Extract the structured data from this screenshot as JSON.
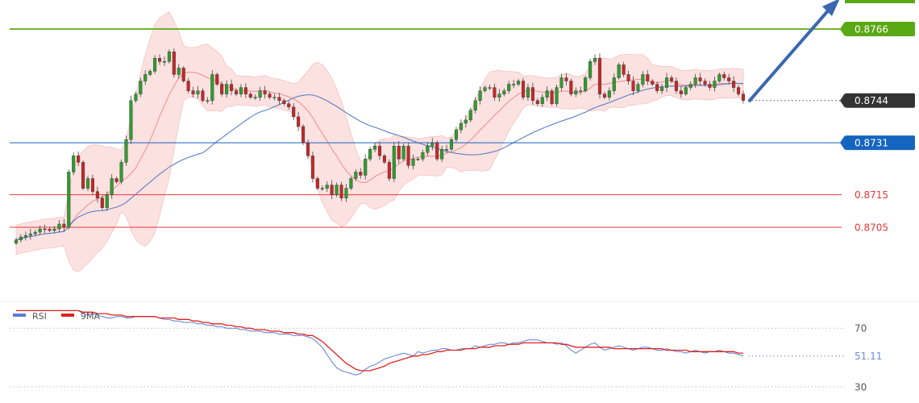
{
  "chart_data": [
    {
      "type": "candlestick",
      "panel": "price",
      "title": "",
      "xlabel": "",
      "ylabel": "",
      "ylim": [
        0.868,
        0.8772
      ],
      "y_ticks_shown": false,
      "grid": false,
      "levels": [
        {
          "name": "resistance",
          "value": 0.8766,
          "label": "0.8766",
          "color": "#5aa814",
          "style": "solid",
          "tag": true
        },
        {
          "name": "current-price",
          "value": 0.8744,
          "label": "0.8744",
          "color": "#333333",
          "style": "dotted",
          "tag": true
        },
        {
          "name": "pivot",
          "value": 0.8731,
          "label": "0.8731",
          "color": "#1565c0",
          "style": "solid",
          "tag": true
        },
        {
          "name": "support-1",
          "value": 0.8715,
          "label": "0.8715",
          "color": "#e53935",
          "style": "solid",
          "tag": false
        },
        {
          "name": "support-2",
          "value": 0.8705,
          "label": "0.8705",
          "color": "#e53935",
          "style": "solid",
          "tag": false
        }
      ],
      "close": [
        0.87011,
        0.8702,
        0.87025,
        0.8703,
        0.87035,
        0.87045,
        0.87044,
        0.8704,
        0.87045,
        0.8706,
        0.8705,
        0.8722,
        0.8727,
        0.8725,
        0.8717,
        0.872,
        0.8716,
        0.8714,
        0.8711,
        0.8715,
        0.872,
        0.8719,
        0.8725,
        0.8732,
        0.8744,
        0.8746,
        0.875,
        0.8752,
        0.8753,
        0.8757,
        0.8756,
        0.8756,
        0.8759,
        0.8752,
        0.8754,
        0.875,
        0.8747,
        0.8746,
        0.8747,
        0.8744,
        0.8744,
        0.8752,
        0.8749,
        0.8746,
        0.8749,
        0.8747,
        0.8746,
        0.8748,
        0.8746,
        0.8745,
        0.8745,
        0.8747,
        0.8746,
        0.8745,
        0.8745,
        0.8744,
        0.8743,
        0.8742,
        0.8739,
        0.8736,
        0.8731,
        0.8727,
        0.872,
        0.8717,
        0.8717,
        0.8718,
        0.8715,
        0.8718,
        0.8714,
        0.8717,
        0.872,
        0.8722,
        0.8721,
        0.8726,
        0.8729,
        0.873,
        0.8727,
        0.8725,
        0.872,
        0.873,
        0.8726,
        0.873,
        0.8724,
        0.8726,
        0.8726,
        0.8728,
        0.873,
        0.8731,
        0.8726,
        0.8729,
        0.8729,
        0.8732,
        0.8735,
        0.8737,
        0.8738,
        0.8741,
        0.8744,
        0.8747,
        0.8748,
        0.8748,
        0.8745,
        0.8746,
        0.8747,
        0.8749,
        0.8749,
        0.875,
        0.8745,
        0.8748,
        0.8744,
        0.8743,
        0.8745,
        0.8747,
        0.8743,
        0.8748,
        0.8751,
        0.875,
        0.8746,
        0.8747,
        0.8747,
        0.8751,
        0.8756,
        0.8757,
        0.8746,
        0.8745,
        0.8747,
        0.8751,
        0.8755,
        0.8752,
        0.875,
        0.8747,
        0.8749,
        0.8752,
        0.875,
        0.8749,
        0.8747,
        0.8748,
        0.8751,
        0.875,
        0.8747,
        0.8746,
        0.8748,
        0.8749,
        0.8751,
        0.875,
        0.8749,
        0.8748,
        0.875,
        0.8752,
        0.8751,
        0.875,
        0.8748,
        0.8746,
        0.8744
      ],
      "candle_colors": {
        "up": "#2e9e2e",
        "down": "#c62828"
      },
      "overlays": [
        {
          "name": "bollinger-band",
          "fill": "#f9c9c9",
          "opacity": 0.55
        },
        {
          "name": "ma-fast",
          "color": "#f28b8b"
        },
        {
          "name": "ma-slow",
          "color": "#5a7fc0"
        }
      ],
      "annotation": {
        "type": "arrow",
        "direction": "up",
        "color": "#3a68b0"
      }
    },
    {
      "type": "line",
      "panel": "rsi",
      "title": "",
      "legend": {
        "placement": "top-left",
        "entries": [
          {
            "name": "RSI",
            "color": "#5b7fd4"
          },
          {
            "name": "9MA",
            "color": "#e02020"
          }
        ]
      },
      "ylim": [
        20,
        85
      ],
      "guide_levels": [
        70,
        30
      ],
      "guide_labels": [
        "70",
        "30"
      ],
      "current_value_label": "51.11",
      "current_value_color": "#6f8fd6",
      "series": [
        {
          "name": "RSI",
          "color": "#5b7fd4",
          "values": [
            82,
            82,
            82,
            82,
            82,
            82,
            82,
            82,
            82,
            82,
            82,
            82,
            82,
            82,
            80,
            79,
            80,
            79,
            78,
            77,
            77,
            78,
            78,
            77,
            77,
            78,
            78,
            78,
            78,
            78,
            77,
            76,
            76,
            75,
            75,
            74,
            74,
            74,
            73,
            73,
            72,
            72,
            71,
            71,
            70,
            70,
            70,
            69,
            69,
            68,
            68,
            68,
            67,
            67,
            67,
            66,
            66,
            66,
            65,
            65,
            65,
            64,
            63,
            60,
            57,
            52,
            47,
            43,
            41,
            40,
            39,
            38,
            39,
            42,
            44,
            45,
            47,
            49,
            50,
            51,
            52,
            53,
            52,
            51,
            54,
            53,
            54,
            55,
            55,
            56,
            56,
            55,
            55,
            56,
            56,
            56,
            58,
            57,
            58,
            59,
            59,
            60,
            60,
            59,
            60,
            60,
            61,
            62,
            62,
            62,
            61,
            60,
            60,
            59,
            60,
            58,
            55,
            53,
            55,
            57,
            59,
            60,
            57,
            55,
            56,
            57,
            58,
            57,
            56,
            55,
            56,
            57,
            57,
            56,
            55,
            55,
            56,
            55,
            54,
            54,
            53,
            54,
            55,
            54,
            53,
            54,
            54,
            55,
            54,
            53,
            53,
            52,
            51
          ]
        },
        {
          "name": "9MA",
          "color": "#e02020",
          "values": [
            82,
            82,
            82,
            82,
            82,
            82,
            82,
            82,
            82,
            82,
            82,
            82,
            82,
            82,
            81,
            81,
            81,
            80,
            80,
            80,
            79,
            79,
            79,
            78,
            78,
            78,
            78,
            78,
            78,
            78,
            77,
            77,
            77,
            77,
            76,
            76,
            76,
            75,
            75,
            74,
            74,
            73,
            73,
            73,
            72,
            72,
            71,
            71,
            70,
            70,
            69,
            69,
            69,
            68,
            68,
            68,
            67,
            67,
            67,
            66,
            66,
            65,
            65,
            63,
            61,
            58,
            55,
            52,
            49,
            46,
            44,
            42,
            41,
            41,
            41,
            42,
            43,
            44,
            46,
            47,
            48,
            49,
            50,
            51,
            51,
            52,
            52,
            53,
            54,
            54,
            55,
            55,
            55,
            55,
            56,
            56,
            56,
            57,
            57,
            57,
            58,
            58,
            58,
            59,
            59,
            59,
            60,
            60,
            60,
            60,
            60,
            60,
            60,
            60,
            59,
            59,
            58,
            57,
            57,
            57,
            57,
            57,
            57,
            57,
            57,
            56,
            56,
            56,
            56,
            56,
            56,
            56,
            56,
            56,
            56,
            56,
            55,
            55,
            55,
            55,
            55,
            54,
            54,
            54,
            54,
            54,
            54,
            54,
            54,
            54,
            54,
            53,
            53
          ]
        }
      ]
    }
  ]
}
